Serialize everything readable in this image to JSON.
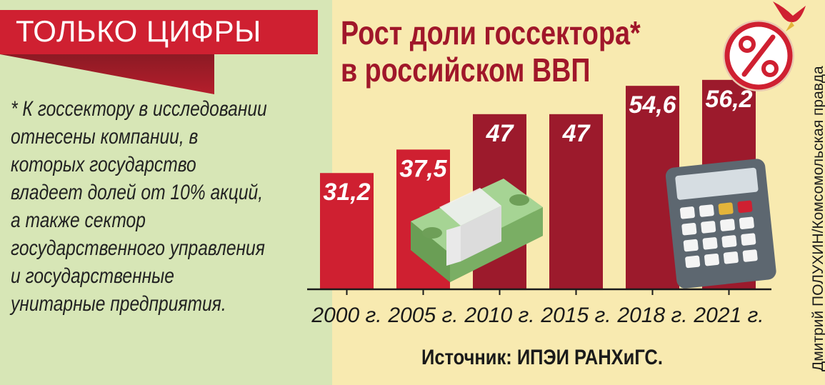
{
  "header": {
    "banner": "ТОЛЬКО ЦИФРЫ"
  },
  "note": "* К госсектору в исследовании отнесены компании, в которых государство владеет долей от 10% акций, а также сектор государственного управления и государственные унитарные предприятия.",
  "source": "Источник: ИПЭИ РАНХиГС.",
  "credit": "Дмитрий ПОЛУХИН/Комсомольская правда",
  "icons": [
    "percent-badge-icon",
    "bird-icon",
    "money-stack-icon",
    "calculator-icon"
  ],
  "colors": {
    "bar_early": "#cf2031",
    "bar_late": "#9c1a2c",
    "title": "#a0172a",
    "left_panel": "#d7e6b6",
    "right_panel": "#f8eab0"
  },
  "chart_data": {
    "type": "bar",
    "title": "Рост доли госсектора*\nв российском ВВП",
    "categories": [
      "2000 г.",
      "2005 г.",
      "2010 г.",
      "2015 г.",
      "2018 г.",
      "2021 г."
    ],
    "values": [
      31.2,
      37.5,
      47,
      47,
      54.6,
      56.2
    ],
    "value_labels": [
      "31,2",
      "37,5",
      "47",
      "47",
      "54,6",
      "56,2"
    ],
    "xlabel": "",
    "ylabel": "",
    "ylim": [
      0,
      60
    ],
    "grid": false,
    "legend": "none"
  }
}
